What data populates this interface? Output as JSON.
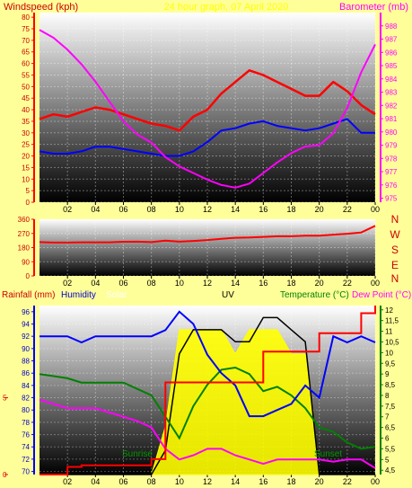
{
  "header": {
    "left_title": "Windspeed (kph)",
    "center_title": "24 hour graph, 07 April 2020",
    "right_title": "Barometer (mb)"
  },
  "bottom_header": {
    "rainfall": "Rainfall (mm)",
    "humidity": "Humidity",
    "solar": "Solar",
    "uv": "UV",
    "temperature": "Temperature (°C)",
    "dewpoint": "Dew Point (°C)"
  },
  "compass": [
    "N",
    "W",
    "S",
    "E",
    "N"
  ],
  "annotations": {
    "sunrise": "Sunrise",
    "sunset": "Sunset"
  },
  "colors": {
    "background": "#ffff99",
    "wind_gust": "#ff0000",
    "wind_avg": "#0000ff",
    "barometer": "#ff00ff",
    "wind_dir": "#ff0000",
    "rain": "#ff0000",
    "humidity": "#0000ff",
    "solar": "#ffff00",
    "uv": "#000000",
    "temperature": "#008000",
    "dewpoint": "#ff00ff"
  },
  "chart_data": [
    {
      "type": "line",
      "title": "24 hour graph, 07 April 2020",
      "ylabel": "Windspeed (kph)",
      "y2label": "Barometer (mb)",
      "x_ticks": [
        "02",
        "04",
        "06",
        "08",
        "10",
        "12",
        "14",
        "16",
        "18",
        "20",
        "22",
        "00"
      ],
      "y_ticks": [
        0,
        5,
        10,
        15,
        20,
        25,
        30,
        35,
        40,
        45,
        50,
        55,
        60,
        65,
        70,
        75,
        80
      ],
      "ylim": [
        0,
        82
      ],
      "y2_ticks": [
        975,
        976,
        977,
        978,
        979,
        980,
        981,
        982,
        983,
        984,
        985,
        986,
        987,
        988
      ],
      "y2lim": [
        974.7,
        989
      ],
      "x": [
        0,
        1,
        2,
        3,
        4,
        5,
        6,
        7,
        8,
        9,
        10,
        11,
        12,
        13,
        14,
        15,
        16,
        17,
        18,
        19,
        20,
        21,
        22,
        23,
        24
      ],
      "series": [
        {
          "key": "gust",
          "values": [
            36,
            38,
            37,
            39,
            41,
            40,
            38,
            36,
            34,
            33,
            31,
            37,
            40,
            47,
            52,
            57,
            55,
            52,
            49,
            46,
            46,
            52,
            48,
            42,
            38
          ]
        },
        {
          "key": "average",
          "values": [
            22,
            21,
            21,
            22,
            24,
            24,
            23,
            22,
            21,
            20,
            20,
            22,
            26,
            31,
            32,
            34,
            35,
            33,
            32,
            31,
            32,
            34,
            36,
            30,
            30
          ]
        },
        {
          "key": "barometer",
          "values": [
            987.7,
            987.1,
            986.2,
            985.1,
            983.8,
            982.3,
            980.8,
            979.8,
            979.2,
            978.1,
            977.4,
            976.9,
            976.4,
            976.0,
            975.8,
            976.1,
            976.9,
            977.7,
            978.4,
            978.9,
            979.0,
            979.9,
            981.8,
            984.5,
            986.6
          ]
        }
      ]
    },
    {
      "type": "line",
      "ylabel": "Wind direction",
      "x_ticks": [
        "02",
        "04",
        "06",
        "08",
        "10",
        "12",
        "14",
        "16",
        "18",
        "20",
        "22",
        "00"
      ],
      "y_ticks": [
        0,
        90,
        180,
        270,
        360
      ],
      "ylim": [
        0,
        360
      ],
      "x": [
        0,
        1,
        2,
        3,
        4,
        5,
        6,
        7,
        8,
        9,
        10,
        11,
        12,
        13,
        14,
        15,
        16,
        17,
        18,
        19,
        20,
        21,
        22,
        23,
        24
      ],
      "series": [
        {
          "key": "direction",
          "values": [
            215,
            212,
            212,
            214,
            214,
            214,
            217,
            218,
            215,
            224,
            218,
            222,
            228,
            236,
            242,
            244,
            248,
            252,
            252,
            256,
            256,
            262,
            268,
            276,
            318
          ]
        }
      ]
    },
    {
      "type": "line",
      "x_ticks": [
        "02",
        "04",
        "06",
        "08",
        "10",
        "12",
        "14",
        "16",
        "18",
        "20",
        "22",
        "00"
      ],
      "humidity_ticks": [
        70,
        72,
        74,
        76,
        78,
        80,
        82,
        84,
        86,
        88,
        90,
        92,
        94,
        96
      ],
      "humidity_lim": [
        69.5,
        97
      ],
      "rain_ticks": [
        0,
        5
      ],
      "rain_lim": [
        0,
        11
      ],
      "temperature_ticks": [
        "4,5",
        "5",
        "5,5",
        "6",
        "6,5",
        "7",
        "7,5",
        "8",
        "8,5",
        "9",
        "9,5",
        "10",
        "10,5",
        "11",
        "11,5",
        "12"
      ],
      "temperature_lim": [
        4.3,
        12.2
      ],
      "x": [
        0,
        1,
        2,
        3,
        4,
        5,
        6,
        7,
        8,
        9,
        10,
        11,
        12,
        13,
        14,
        15,
        16,
        17,
        18,
        19,
        20,
        21,
        22,
        23,
        24
      ],
      "series": [
        {
          "key": "rainfall",
          "values": [
            0,
            0,
            0.5,
            0.6,
            0.6,
            0.6,
            0.6,
            0.6,
            1,
            6,
            6,
            6,
            6,
            6,
            6,
            6,
            8,
            8,
            8,
            8,
            9.2,
            9.2,
            9.2,
            10.5,
            11
          ]
        },
        {
          "key": "humidity",
          "values": [
            92,
            92,
            92,
            91,
            92,
            92,
            92,
            92,
            92,
            93,
            96,
            94,
            89,
            86,
            84,
            79,
            79,
            80,
            81,
            84,
            82,
            92,
            91,
            92,
            91
          ]
        },
        {
          "key": "solar",
          "values": [
            0,
            0,
            0,
            0,
            0,
            0,
            0,
            0,
            0,
            2,
            6,
            6,
            6,
            6,
            5,
            6,
            6,
            6,
            5,
            5,
            0,
            0,
            0,
            0,
            0
          ]
        },
        {
          "key": "uv",
          "values": [
            0,
            0,
            0,
            0,
            0,
            0,
            0,
            0,
            0,
            1,
            5,
            6,
            6,
            6,
            5.5,
            5.5,
            6.5,
            6.5,
            6,
            5.5,
            0,
            0,
            0,
            0,
            0
          ]
        },
        {
          "key": "temperature",
          "values": [
            9.0,
            8.9,
            8.8,
            8.6,
            8.6,
            8.6,
            8.6,
            8.3,
            8.0,
            7.0,
            6.0,
            7.5,
            8.5,
            9.2,
            9.3,
            9.0,
            8.2,
            8.4,
            8.0,
            7.4,
            6.5,
            6.3,
            5.8,
            5.5,
            5.6
          ]
        },
        {
          "key": "dewpoint",
          "values": [
            7.8,
            7.6,
            7.4,
            7.4,
            7.4,
            7.2,
            7.0,
            6.8,
            6.5,
            5.5,
            5.0,
            5.2,
            5.5,
            5.5,
            5.2,
            5.0,
            4.8,
            5.0,
            5.0,
            5.0,
            5.0,
            4.9,
            5.0,
            5.0,
            4.6
          ]
        }
      ]
    }
  ]
}
